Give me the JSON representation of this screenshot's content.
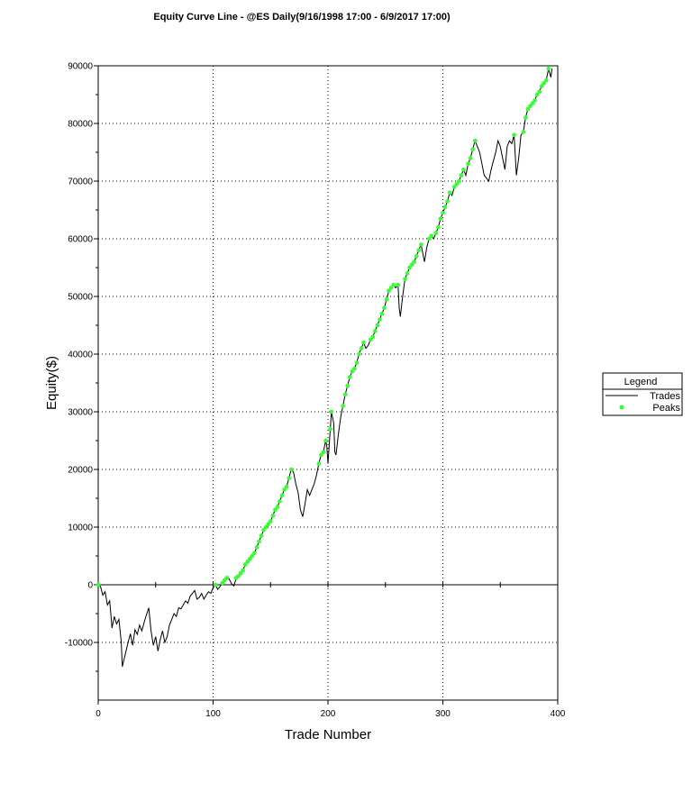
{
  "chart_data": {
    "type": "line",
    "title": "Equity Curve Line - @ES Daily(9/16/1998 17:00 - 6/9/2017 17:00)",
    "xlabel": "Trade Number",
    "ylabel": "Equity($)",
    "xlim": [
      0,
      400
    ],
    "ylim": [
      -20000,
      90000
    ],
    "x_ticks": [
      0,
      100,
      200,
      300,
      400
    ],
    "y_ticks": [
      -10000,
      0,
      10000,
      20000,
      30000,
      40000,
      50000,
      60000,
      70000,
      80000,
      90000
    ],
    "grid": true,
    "legend": {
      "title": "Legend",
      "placement": "right",
      "entries": [
        {
          "label": "Trades",
          "marker": "line",
          "color": "#000000"
        },
        {
          "label": "Peaks",
          "marker": "dot",
          "color": "#33ff33"
        }
      ]
    },
    "series": [
      {
        "name": "Trades",
        "color": "#000000",
        "points": [
          [
            0,
            0
          ],
          [
            2,
            -300
          ],
          [
            4,
            -1800
          ],
          [
            6,
            -1200
          ],
          [
            8,
            -3500
          ],
          [
            10,
            -2800
          ],
          [
            12,
            -7500
          ],
          [
            14,
            -5500
          ],
          [
            16,
            -6800
          ],
          [
            18,
            -6000
          ],
          [
            20,
            -9800
          ],
          [
            21,
            -14200
          ],
          [
            23,
            -12500
          ],
          [
            26,
            -10000
          ],
          [
            28,
            -8500
          ],
          [
            30,
            -10500
          ],
          [
            32,
            -7800
          ],
          [
            34,
            -8600
          ],
          [
            36,
            -7000
          ],
          [
            38,
            -8000
          ],
          [
            40,
            -6500
          ],
          [
            42,
            -5200
          ],
          [
            44,
            -4000
          ],
          [
            46,
            -8000
          ],
          [
            48,
            -10500
          ],
          [
            50,
            -9000
          ],
          [
            52,
            -11500
          ],
          [
            54,
            -9500
          ],
          [
            56,
            -8000
          ],
          [
            58,
            -10000
          ],
          [
            60,
            -9000
          ],
          [
            62,
            -7000
          ],
          [
            64,
            -6000
          ],
          [
            66,
            -5000
          ],
          [
            68,
            -5500
          ],
          [
            70,
            -4000
          ],
          [
            72,
            -4200
          ],
          [
            74,
            -3500
          ],
          [
            76,
            -2800
          ],
          [
            78,
            -3200
          ],
          [
            80,
            -2000
          ],
          [
            82,
            -1500
          ],
          [
            84,
            -1000
          ],
          [
            86,
            -2500
          ],
          [
            88,
            -2200
          ],
          [
            90,
            -1500
          ],
          [
            92,
            -2500
          ],
          [
            94,
            -1800
          ],
          [
            96,
            -1200
          ],
          [
            98,
            -1500
          ],
          [
            100,
            -500
          ],
          [
            102,
            0
          ],
          [
            104,
            -800
          ],
          [
            106,
            -300
          ],
          [
            108,
            300
          ],
          [
            110,
            800
          ],
          [
            112,
            1200
          ],
          [
            114,
            1000
          ],
          [
            116,
            200
          ],
          [
            118,
            -200
          ],
          [
            120,
            1000
          ],
          [
            122,
            1500
          ],
          [
            124,
            2000
          ],
          [
            126,
            2500
          ],
          [
            128,
            3500
          ],
          [
            130,
            4000
          ],
          [
            132,
            4500
          ],
          [
            134,
            5000
          ],
          [
            136,
            5500
          ],
          [
            138,
            6500
          ],
          [
            140,
            7500
          ],
          [
            142,
            8500
          ],
          [
            144,
            9500
          ],
          [
            146,
            10000
          ],
          [
            148,
            10500
          ],
          [
            150,
            11000
          ],
          [
            152,
            12000
          ],
          [
            154,
            13000
          ],
          [
            156,
            13500
          ],
          [
            158,
            14500
          ],
          [
            160,
            15500
          ],
          [
            162,
            16500
          ],
          [
            164,
            17000
          ],
          [
            166,
            18500
          ],
          [
            168,
            20000
          ],
          [
            170,
            19500
          ],
          [
            172,
            17500
          ],
          [
            174,
            16000
          ],
          [
            176,
            13000
          ],
          [
            178,
            11800
          ],
          [
            180,
            14000
          ],
          [
            182,
            16500
          ],
          [
            184,
            15500
          ],
          [
            186,
            16500
          ],
          [
            188,
            17500
          ],
          [
            190,
            19000
          ],
          [
            192,
            21000
          ],
          [
            194,
            22500
          ],
          [
            196,
            23000
          ],
          [
            198,
            25000
          ],
          [
            199,
            24000
          ],
          [
            200,
            21000
          ],
          [
            202,
            27000
          ],
          [
            203,
            30000
          ],
          [
            205,
            28000
          ],
          [
            206,
            23000
          ],
          [
            207,
            22500
          ],
          [
            209,
            26000
          ],
          [
            211,
            29000
          ],
          [
            213,
            31000
          ],
          [
            215,
            33000
          ],
          [
            217,
            34500
          ],
          [
            219,
            36000
          ],
          [
            221,
            37000
          ],
          [
            223,
            37500
          ],
          [
            225,
            38500
          ],
          [
            227,
            40000
          ],
          [
            229,
            41000
          ],
          [
            231,
            42000
          ],
          [
            233,
            41000
          ],
          [
            235,
            41500
          ],
          [
            237,
            42500
          ],
          [
            239,
            43000
          ],
          [
            241,
            44000
          ],
          [
            243,
            45000
          ],
          [
            245,
            46000
          ],
          [
            247,
            47000
          ],
          [
            249,
            48000
          ],
          [
            251,
            49500
          ],
          [
            253,
            51000
          ],
          [
            255,
            51500
          ],
          [
            257,
            52000
          ],
          [
            259,
            51500
          ],
          [
            261,
            52000
          ],
          [
            262,
            48000
          ],
          [
            263,
            46500
          ],
          [
            265,
            50000
          ],
          [
            267,
            53000
          ],
          [
            269,
            54000
          ],
          [
            271,
            55000
          ],
          [
            273,
            55500
          ],
          [
            275,
            56000
          ],
          [
            277,
            57000
          ],
          [
            279,
            58000
          ],
          [
            281,
            59000
          ],
          [
            283,
            57000
          ],
          [
            284,
            56000
          ],
          [
            286,
            58500
          ],
          [
            288,
            60000
          ],
          [
            290,
            60500
          ],
          [
            292,
            60000
          ],
          [
            294,
            61000
          ],
          [
            296,
            62000
          ],
          [
            298,
            63500
          ],
          [
            300,
            64500
          ],
          [
            302,
            65500
          ],
          [
            304,
            66500
          ],
          [
            306,
            68000
          ],
          [
            308,
            67500
          ],
          [
            310,
            69000
          ],
          [
            312,
            69500
          ],
          [
            314,
            70000
          ],
          [
            316,
            71000
          ],
          [
            318,
            72000
          ],
          [
            320,
            71000
          ],
          [
            322,
            73000
          ],
          [
            324,
            74000
          ],
          [
            326,
            75500
          ],
          [
            328,
            77000
          ],
          [
            330,
            76000
          ],
          [
            332,
            75000
          ],
          [
            334,
            73000
          ],
          [
            336,
            71000
          ],
          [
            338,
            70500
          ],
          [
            340,
            70000
          ],
          [
            342,
            72000
          ],
          [
            344,
            73500
          ],
          [
            346,
            75000
          ],
          [
            348,
            77000
          ],
          [
            350,
            76000
          ],
          [
            352,
            74000
          ],
          [
            354,
            72000
          ],
          [
            356,
            76000
          ],
          [
            358,
            77000
          ],
          [
            360,
            76500
          ],
          [
            362,
            78000
          ],
          [
            364,
            71000
          ],
          [
            366,
            74000
          ],
          [
            368,
            78000
          ],
          [
            370,
            78500
          ],
          [
            372,
            81000
          ],
          [
            374,
            82500
          ],
          [
            376,
            83000
          ],
          [
            378,
            83500
          ],
          [
            380,
            84000
          ],
          [
            382,
            85000
          ],
          [
            384,
            85500
          ],
          [
            386,
            86500
          ],
          [
            388,
            87000
          ],
          [
            390,
            87500
          ],
          [
            392,
            89500
          ],
          [
            394,
            88000
          ],
          [
            395,
            89500
          ]
        ]
      },
      {
        "name": "Peaks",
        "color": "#33ff33",
        "points": [
          [
            0,
            0
          ],
          [
            102,
            0
          ],
          [
            108,
            300
          ],
          [
            110,
            800
          ],
          [
            112,
            1200
          ],
          [
            120,
            1200
          ],
          [
            122,
            1500
          ],
          [
            124,
            2000
          ],
          [
            126,
            2500
          ],
          [
            128,
            3500
          ],
          [
            130,
            4000
          ],
          [
            132,
            4500
          ],
          [
            134,
            5000
          ],
          [
            136,
            5500
          ],
          [
            138,
            6500
          ],
          [
            140,
            7500
          ],
          [
            142,
            8500
          ],
          [
            144,
            9500
          ],
          [
            146,
            10000
          ],
          [
            148,
            10500
          ],
          [
            150,
            11000
          ],
          [
            152,
            12000
          ],
          [
            154,
            13000
          ],
          [
            156,
            13500
          ],
          [
            158,
            14500
          ],
          [
            160,
            15500
          ],
          [
            162,
            16500
          ],
          [
            164,
            17000
          ],
          [
            166,
            18500
          ],
          [
            168,
            20000
          ],
          [
            192,
            21000
          ],
          [
            194,
            22500
          ],
          [
            196,
            23000
          ],
          [
            198,
            25000
          ],
          [
            202,
            27000
          ],
          [
            203,
            30000
          ],
          [
            213,
            31000
          ],
          [
            215,
            33000
          ],
          [
            217,
            34500
          ],
          [
            219,
            36000
          ],
          [
            221,
            37000
          ],
          [
            223,
            37500
          ],
          [
            225,
            38500
          ],
          [
            227,
            40000
          ],
          [
            229,
            41000
          ],
          [
            231,
            42000
          ],
          [
            237,
            42500
          ],
          [
            239,
            43000
          ],
          [
            241,
            44000
          ],
          [
            243,
            45000
          ],
          [
            245,
            46000
          ],
          [
            247,
            47000
          ],
          [
            249,
            48000
          ],
          [
            251,
            49500
          ],
          [
            253,
            51000
          ],
          [
            255,
            51500
          ],
          [
            257,
            52000
          ],
          [
            261,
            52000
          ],
          [
            267,
            53000
          ],
          [
            269,
            54000
          ],
          [
            271,
            55000
          ],
          [
            273,
            55500
          ],
          [
            275,
            56000
          ],
          [
            277,
            57000
          ],
          [
            279,
            58000
          ],
          [
            281,
            59000
          ],
          [
            288,
            60000
          ],
          [
            290,
            60500
          ],
          [
            294,
            61000
          ],
          [
            296,
            62000
          ],
          [
            298,
            63500
          ],
          [
            300,
            64500
          ],
          [
            302,
            65500
          ],
          [
            304,
            66500
          ],
          [
            306,
            68000
          ],
          [
            310,
            69000
          ],
          [
            312,
            69500
          ],
          [
            314,
            70000
          ],
          [
            316,
            71000
          ],
          [
            318,
            72000
          ],
          [
            322,
            73000
          ],
          [
            324,
            74000
          ],
          [
            326,
            75500
          ],
          [
            328,
            77000
          ],
          [
            362,
            78000
          ],
          [
            370,
            78500
          ],
          [
            372,
            81000
          ],
          [
            374,
            82500
          ],
          [
            376,
            83000
          ],
          [
            378,
            83500
          ],
          [
            380,
            84000
          ],
          [
            382,
            85000
          ],
          [
            384,
            85500
          ],
          [
            386,
            86500
          ],
          [
            388,
            87000
          ],
          [
            390,
            87500
          ],
          [
            392,
            89500
          ]
        ]
      }
    ]
  }
}
